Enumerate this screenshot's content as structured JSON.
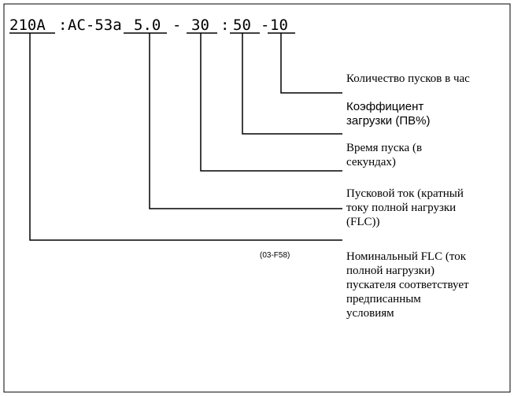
{
  "code": {
    "rating": "210A",
    "sep1": ":",
    "category": "AC-53a",
    "current": "5.0",
    "dash1": "-",
    "time": "30",
    "sep2": ":",
    "duty": "50",
    "dash2": "-",
    "starts": "10"
  },
  "labels": {
    "starts": [
      "Количество пусков в час"
    ],
    "duty": [
      "Коэффициент",
      "загрузки (ПВ%)"
    ],
    "time": [
      "Время пуска (в",
      "секундах)"
    ],
    "current": [
      "Пусковой ток (кратный",
      "току полной нагрузки",
      "(FLC))"
    ],
    "rating": [
      "Номинальный FLC (ток",
      "полной нагрузки)",
      "пускателя соответствует",
      "предписанным",
      "условиям"
    ]
  },
  "figure_id": "(03-F58)"
}
